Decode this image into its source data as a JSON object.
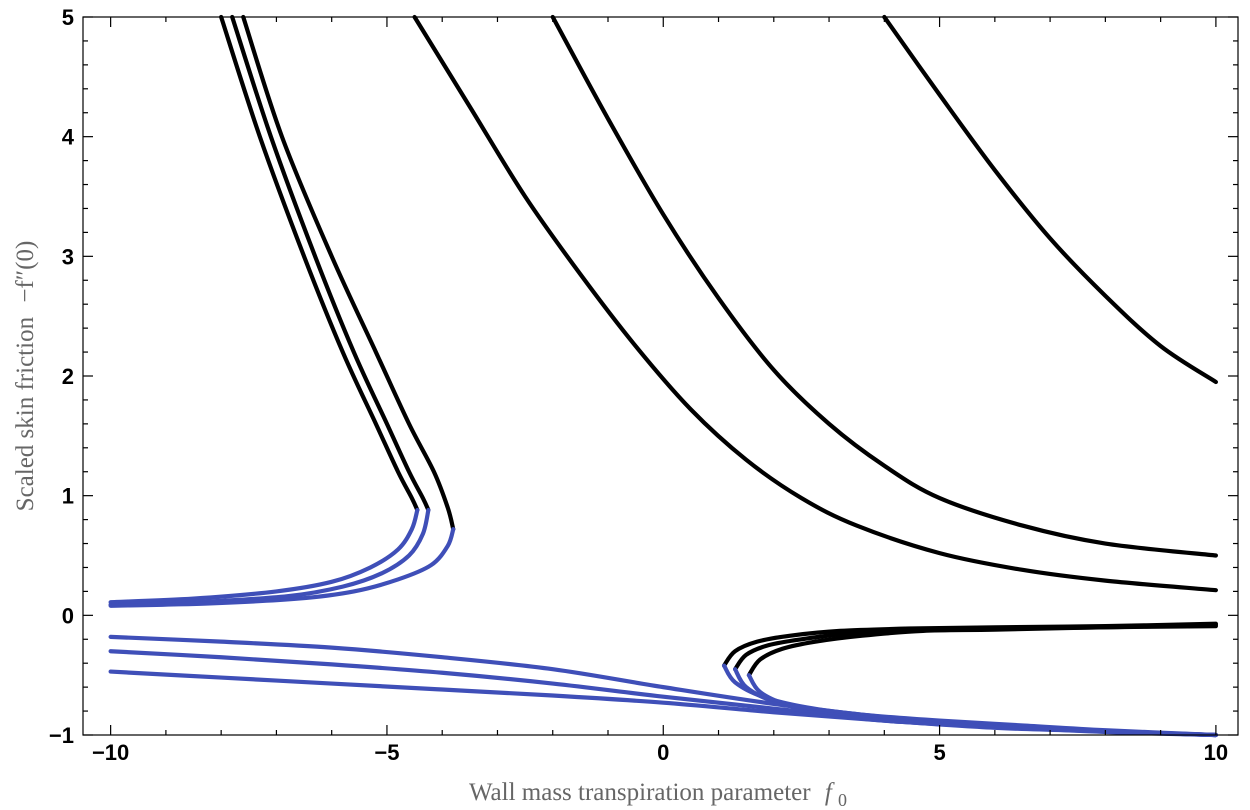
{
  "chart_data": {
    "type": "line",
    "title": "",
    "xlabel": "Wall mass transpiration parameter",
    "xlabel_symbol": "f",
    "xlabel_subscript": "0",
    "ylabel": "Scaled skin friction",
    "ylabel_symbol": "−f″(0)",
    "xlim": [
      -10.5,
      10.4
    ],
    "ylim": [
      -1,
      5
    ],
    "x_ticks": [
      -10,
      -5,
      0,
      5,
      10
    ],
    "x_tick_labels": [
      "−10",
      "−5",
      "0",
      "5",
      "10"
    ],
    "y_ticks": [
      -1,
      0,
      1,
      2,
      3,
      4,
      5
    ],
    "y_tick_labels": [
      "−1",
      "0",
      "1",
      "2",
      "3",
      "4",
      "5"
    ],
    "colors": {
      "upper_branch": "#000000",
      "lower_branch": "#3f4fb8"
    },
    "series": [
      {
        "name": "upper-branch-1",
        "color": "#000000",
        "x": [
          -8.0,
          -7.3,
          -6.5,
          -5.8,
          -5.2,
          -4.8,
          -4.55,
          -4.45
        ],
        "y": [
          5.0,
          4.0,
          3.0,
          2.2,
          1.6,
          1.2,
          0.98,
          0.88
        ]
      },
      {
        "name": "upper-branch-2",
        "color": "#000000",
        "x": [
          -7.8,
          -7.1,
          -6.3,
          -5.6,
          -5.0,
          -4.6,
          -4.35,
          -4.25
        ],
        "y": [
          5.0,
          4.0,
          3.0,
          2.2,
          1.6,
          1.2,
          0.98,
          0.88
        ]
      },
      {
        "name": "upper-branch-3",
        "color": "#000000",
        "x": [
          -7.6,
          -6.9,
          -6.0,
          -5.2,
          -4.6,
          -4.15,
          -3.9,
          -3.8
        ],
        "y": [
          5.0,
          4.0,
          3.0,
          2.2,
          1.6,
          1.2,
          0.9,
          0.72
        ]
      },
      {
        "name": "lower-branch-1",
        "color": "#3f4fb8",
        "x": [
          -4.45,
          -4.55,
          -4.8,
          -5.3,
          -6.0,
          -7.0,
          -8.5,
          -10.0
        ],
        "y": [
          0.88,
          0.72,
          0.55,
          0.4,
          0.28,
          0.2,
          0.14,
          0.11
        ]
      },
      {
        "name": "lower-branch-2",
        "color": "#3f4fb8",
        "x": [
          -4.25,
          -4.35,
          -4.6,
          -5.1,
          -5.8,
          -6.8,
          -8.5,
          -10.0
        ],
        "y": [
          0.88,
          0.68,
          0.5,
          0.35,
          0.24,
          0.16,
          0.11,
          0.09
        ]
      },
      {
        "name": "lower-branch-3",
        "color": "#3f4fb8",
        "x": [
          -3.8,
          -3.9,
          -4.2,
          -4.8,
          -5.6,
          -6.6,
          -8.2,
          -10.0
        ],
        "y": [
          0.72,
          0.58,
          0.42,
          0.3,
          0.2,
          0.14,
          0.1,
          0.08
        ]
      },
      {
        "name": "upper-curve-f0-neg4.5",
        "color": "#000000",
        "x": [
          -4.5,
          -3.5,
          -2.5,
          -1.5,
          -0.5,
          0.5,
          1.5,
          2.5,
          3.5,
          5.0,
          6.5,
          8.0,
          10.0
        ],
        "y": [
          5.0,
          4.25,
          3.5,
          2.85,
          2.25,
          1.72,
          1.3,
          0.98,
          0.75,
          0.52,
          0.38,
          0.29,
          0.21
        ]
      },
      {
        "name": "upper-curve-f0-neg2",
        "color": "#000000",
        "x": [
          -2.0,
          -1.0,
          0.0,
          1.0,
          2.0,
          3.0,
          4.0,
          5.0,
          6.5,
          8.0,
          10.0
        ],
        "y": [
          5.0,
          4.15,
          3.35,
          2.65,
          2.05,
          1.6,
          1.25,
          0.98,
          0.75,
          0.6,
          0.5
        ]
      },
      {
        "name": "upper-curve-f0-4",
        "color": "#000000",
        "x": [
          4.0,
          5.0,
          6.0,
          7.0,
          8.0,
          9.0,
          10.0
        ],
        "y": [
          5.0,
          4.35,
          3.72,
          3.15,
          2.67,
          2.25,
          1.95
        ]
      },
      {
        "name": "upper-branch-right-1",
        "color": "#000000",
        "x": [
          1.1,
          1.3,
          1.7,
          2.3,
          3.2,
          4.5,
          6.0,
          8.0,
          10.0
        ],
        "y": [
          -0.42,
          -0.3,
          -0.22,
          -0.17,
          -0.13,
          -0.11,
          -0.1,
          -0.09,
          -0.07
        ]
      },
      {
        "name": "upper-branch-right-2",
        "color": "#000000",
        "x": [
          1.3,
          1.5,
          1.9,
          2.5,
          3.4,
          4.6,
          6.0,
          8.0,
          10.0
        ],
        "y": [
          -0.45,
          -0.33,
          -0.25,
          -0.2,
          -0.15,
          -0.12,
          -0.11,
          -0.1,
          -0.08
        ]
      },
      {
        "name": "upper-branch-right-3",
        "color": "#000000",
        "x": [
          1.55,
          1.75,
          2.15,
          2.75,
          3.6,
          4.7,
          6.0,
          8.0,
          10.0
        ],
        "y": [
          -0.5,
          -0.37,
          -0.28,
          -0.22,
          -0.17,
          -0.13,
          -0.12,
          -0.1,
          -0.09
        ]
      },
      {
        "name": "lower-branch-right-1",
        "color": "#3f4fb8",
        "x": [
          1.1,
          1.3,
          1.8,
          2.6,
          3.6,
          5.0,
          6.5,
          8.0,
          10.0
        ],
        "y": [
          -0.42,
          -0.56,
          -0.68,
          -0.77,
          -0.83,
          -0.88,
          -0.92,
          -0.96,
          -1.0
        ]
      },
      {
        "name": "lower-branch-right-2",
        "color": "#3f4fb8",
        "x": [
          1.3,
          1.5,
          2.0,
          2.8,
          3.8,
          5.2,
          6.7,
          8.2,
          10.0
        ],
        "y": [
          -0.45,
          -0.6,
          -0.72,
          -0.8,
          -0.86,
          -0.9,
          -0.94,
          -0.97,
          -1.0
        ]
      },
      {
        "name": "lower-branch-right-3",
        "color": "#3f4fb8",
        "x": [
          1.55,
          1.75,
          2.25,
          3.0,
          4.0,
          5.4,
          6.8,
          8.3,
          10.0
        ],
        "y": [
          -0.5,
          -0.64,
          -0.75,
          -0.83,
          -0.88,
          -0.92,
          -0.95,
          -0.98,
          -1.0
        ]
      },
      {
        "name": "lower-curve-1",
        "color": "#3f4fb8",
        "x": [
          -10.0,
          -8.0,
          -6.0,
          -4.0,
          -2.0,
          0.0,
          2.0,
          4.0,
          6.0,
          8.0,
          10.0
        ],
        "y": [
          -0.18,
          -0.22,
          -0.27,
          -0.35,
          -0.45,
          -0.6,
          -0.74,
          -0.85,
          -0.92,
          -0.97,
          -1.0
        ]
      },
      {
        "name": "lower-curve-2",
        "color": "#3f4fb8",
        "x": [
          -10.0,
          -8.0,
          -6.0,
          -4.0,
          -2.0,
          0.0,
          2.0,
          4.0,
          6.0,
          8.0,
          10.0
        ],
        "y": [
          -0.3,
          -0.35,
          -0.41,
          -0.48,
          -0.57,
          -0.68,
          -0.78,
          -0.87,
          -0.93,
          -0.97,
          -1.0
        ]
      },
      {
        "name": "lower-curve-3",
        "color": "#3f4fb8",
        "x": [
          -10.0,
          -8.0,
          -6.0,
          -4.0,
          -2.0,
          0.0,
          2.0,
          4.0,
          6.0,
          8.0,
          10.0
        ],
        "y": [
          -0.47,
          -0.52,
          -0.57,
          -0.62,
          -0.67,
          -0.73,
          -0.81,
          -0.88,
          -0.94,
          -0.97,
          -1.0
        ]
      }
    ]
  }
}
